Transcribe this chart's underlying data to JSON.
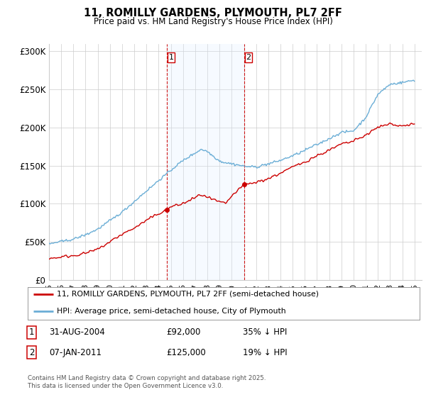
{
  "title1": "11, ROMILLY GARDENS, PLYMOUTH, PL7 2FF",
  "title2": "Price paid vs. HM Land Registry's House Price Index (HPI)",
  "legend_line1": "11, ROMILLY GARDENS, PLYMOUTH, PL7 2FF (semi-detached house)",
  "legend_line2": "HPI: Average price, semi-detached house, City of Plymouth",
  "annotation1_label": "1",
  "annotation1_date": "31-AUG-2004",
  "annotation1_price": "£92,000",
  "annotation1_hpi": "35% ↓ HPI",
  "annotation2_label": "2",
  "annotation2_date": "07-JAN-2011",
  "annotation2_price": "£125,000",
  "annotation2_hpi": "19% ↓ HPI",
  "footer": "Contains HM Land Registry data © Crown copyright and database right 2025.\nThis data is licensed under the Open Government Licence v3.0.",
  "hpi_color": "#6baed6",
  "price_color": "#cc0000",
  "shading_color": "#ddeeff",
  "point1_x": 2004.67,
  "point1_y": 92000,
  "point2_x": 2011.03,
  "point2_y": 125000,
  "vline1_x": 2004.67,
  "vline2_x": 2011.03,
  "ylim_min": 0,
  "ylim_max": 310000,
  "xlim_min": 1995.4,
  "xlim_max": 2025.6,
  "yticks": [
    0,
    50000,
    100000,
    150000,
    200000,
    250000,
    300000
  ],
  "ytick_labels": [
    "£0",
    "£50K",
    "£100K",
    "£150K",
    "£200K",
    "£250K",
    "£300K"
  ],
  "xticks": [
    1995,
    1996,
    1997,
    1998,
    1999,
    2000,
    2001,
    2002,
    2003,
    2004,
    2005,
    2006,
    2007,
    2008,
    2009,
    2010,
    2011,
    2012,
    2013,
    2014,
    2015,
    2016,
    2017,
    2018,
    2019,
    2020,
    2021,
    2022,
    2023,
    2024,
    2025
  ],
  "xtick_labels": [
    "95",
    "96",
    "97",
    "98",
    "99",
    "00",
    "01",
    "02",
    "03",
    "04",
    "05",
    "06",
    "07",
    "08",
    "09",
    "10",
    "11",
    "12",
    "13",
    "14",
    "15",
    "16",
    "17",
    "18",
    "19",
    "20",
    "21",
    "22",
    "23",
    "24",
    "25"
  ],
  "background_color": "#ffffff",
  "grid_color": "#cccccc"
}
